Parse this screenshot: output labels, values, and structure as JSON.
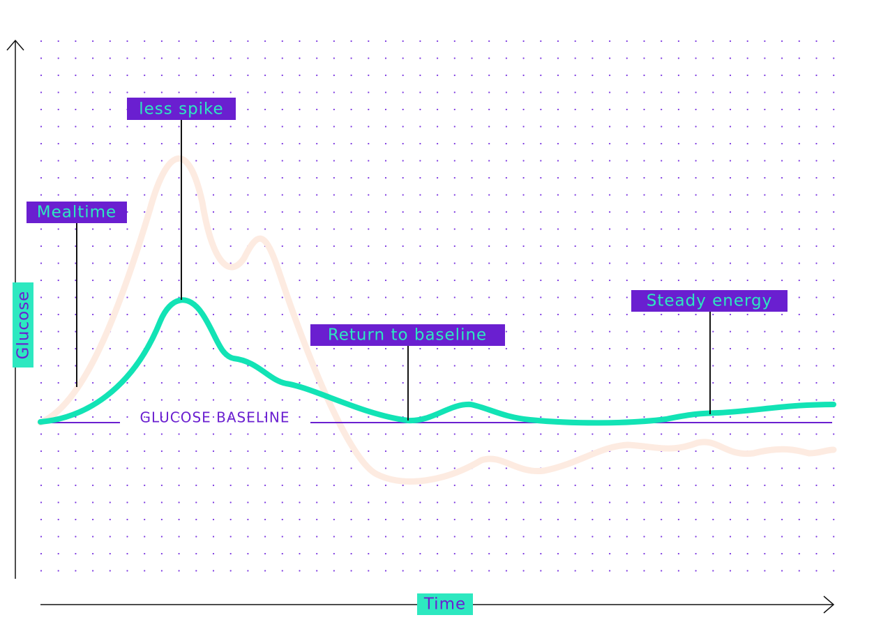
{
  "labels": {
    "peak": "less spike",
    "meal": "Mealtime",
    "return": "Return to baseline",
    "steady": "Steady energy"
  },
  "baseline": "GLUCOSE BASELINE",
  "axes": {
    "y": "Glucose",
    "x": "Time"
  }
}
